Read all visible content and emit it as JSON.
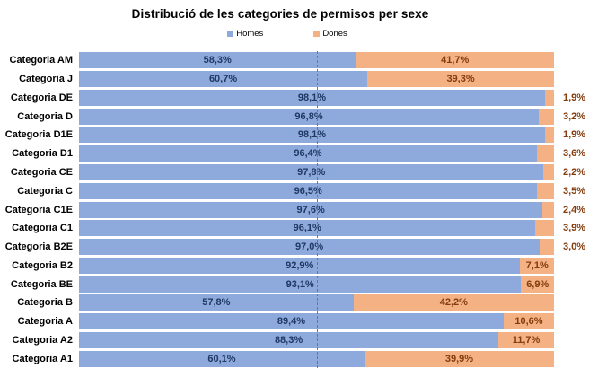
{
  "chart_data": {
    "type": "bar",
    "orientation": "horizontal",
    "stacked": true,
    "title": "Distribució de les categories de permisos per sexe",
    "categories": [
      "Categoria AM",
      "Categoria J",
      "Categoria DE",
      "Categoria D",
      "Categoria D1E",
      "Categoria D1",
      "Categoria CE",
      "Categoria C",
      "Categoria C1E",
      "Categoria C1",
      "Categoria B2E",
      "Categoria B2",
      "Categoria BE",
      "Categoria B",
      "Categoria A",
      "Categoria A2",
      "Categoria A1"
    ],
    "series": [
      {
        "name": "Homes",
        "color": "#8EA9DB",
        "label_color": "#1F3864",
        "values": [
          58.3,
          60.7,
          98.1,
          96.8,
          98.1,
          96.4,
          97.8,
          96.5,
          97.6,
          96.1,
          97.0,
          92.9,
          93.1,
          57.8,
          89.4,
          88.3,
          60.1
        ],
        "labels": [
          "58,3%",
          "60,7%",
          "98,1%",
          "96,8%",
          "98,1%",
          "96,4%",
          "97,8%",
          "96,5%",
          "97,6%",
          "96,1%",
          "97,0%",
          "92,9%",
          "93,1%",
          "57,8%",
          "89,4%",
          "88,3%",
          "60,1%"
        ]
      },
      {
        "name": "Dones",
        "color": "#F4B183",
        "label_color": "#843C0C",
        "values": [
          41.7,
          39.3,
          1.9,
          3.2,
          1.9,
          3.6,
          2.2,
          3.5,
          2.4,
          3.9,
          3.0,
          7.1,
          6.9,
          42.2,
          10.6,
          11.7,
          39.9
        ],
        "labels": [
          "41,7%",
          "39,3%",
          "1,9%",
          "3,2%",
          "1,9%",
          "3,6%",
          "2,2%",
          "3,5%",
          "2,4%",
          "3,9%",
          "3,0%",
          "7,1%",
          "6,9%",
          "42,2%",
          "10,6%",
          "11,7%",
          "39,9%"
        ]
      }
    ],
    "xlim": [
      0,
      100
    ],
    "x_axis_visible": false,
    "grid": {
      "reference_line_pct": 50,
      "style": "dashed",
      "color": "#757575"
    },
    "legend": {
      "position": "top",
      "entries": [
        "Homes",
        "Dones"
      ]
    },
    "outside_label_threshold_pct": 5
  }
}
